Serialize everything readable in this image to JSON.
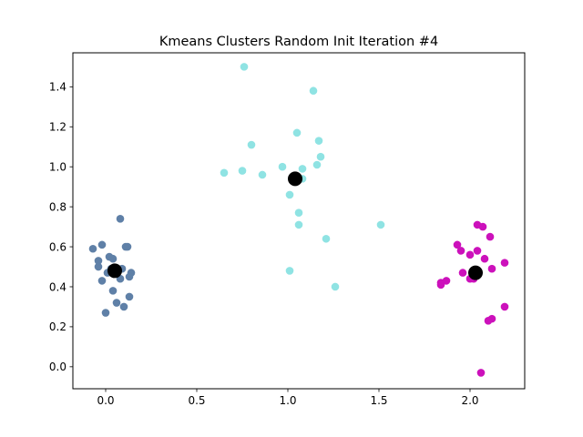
{
  "chart_data": {
    "type": "scatter",
    "title": "Kmeans Clusters Random Init Iteration #4",
    "xlabel": "",
    "ylabel": "",
    "xlim": [
      -0.18,
      2.3
    ],
    "ylim": [
      -0.11,
      1.57
    ],
    "xticks": [
      0.0,
      0.5,
      1.0,
      1.5,
      2.0
    ],
    "xtick_labels": [
      "0.0",
      "0.5",
      "1.0",
      "1.5",
      "2.0"
    ],
    "yticks": [
      0.0,
      0.2,
      0.4,
      0.6,
      0.8,
      1.0,
      1.2,
      1.4
    ],
    "ytick_labels": [
      "0.0",
      "0.2",
      "0.4",
      "0.6",
      "0.8",
      "1.0",
      "1.2",
      "1.4"
    ],
    "grid": false,
    "series": [
      {
        "color": "#5f80a7",
        "points": [
          [
            0.08,
            0.74
          ],
          [
            -0.07,
            0.59
          ],
          [
            -0.02,
            0.61
          ],
          [
            0.11,
            0.6
          ],
          [
            0.12,
            0.6
          ],
          [
            -0.04,
            0.53
          ],
          [
            0.02,
            0.55
          ],
          [
            0.04,
            0.54
          ],
          [
            -0.04,
            0.5
          ],
          [
            0.01,
            0.47
          ],
          [
            0.03,
            0.49
          ],
          [
            0.09,
            0.49
          ],
          [
            0.14,
            0.47
          ],
          [
            0.13,
            0.45
          ],
          [
            -0.02,
            0.43
          ],
          [
            0.08,
            0.44
          ],
          [
            0.04,
            0.38
          ],
          [
            0.13,
            0.35
          ],
          [
            0.06,
            0.32
          ],
          [
            0.1,
            0.3
          ],
          [
            0.0,
            0.27
          ]
        ]
      },
      {
        "color": "#8fe3e3",
        "points": [
          [
            0.76,
            1.5
          ],
          [
            1.14,
            1.38
          ],
          [
            1.05,
            1.17
          ],
          [
            1.17,
            1.13
          ],
          [
            0.8,
            1.11
          ],
          [
            1.18,
            1.05
          ],
          [
            1.16,
            1.01
          ],
          [
            0.97,
            1.0
          ],
          [
            1.08,
            0.99
          ],
          [
            0.65,
            0.97
          ],
          [
            0.75,
            0.98
          ],
          [
            0.86,
            0.96
          ],
          [
            1.08,
            0.94
          ],
          [
            1.01,
            0.86
          ],
          [
            1.06,
            0.77
          ],
          [
            1.06,
            0.71
          ],
          [
            1.51,
            0.71
          ],
          [
            1.21,
            0.64
          ],
          [
            1.01,
            0.48
          ],
          [
            1.26,
            0.4
          ]
        ]
      },
      {
        "color": "#cc11bb",
        "points": [
          [
            2.04,
            0.71
          ],
          [
            2.07,
            0.7
          ],
          [
            2.11,
            0.65
          ],
          [
            1.93,
            0.61
          ],
          [
            1.95,
            0.58
          ],
          [
            2.04,
            0.58
          ],
          [
            2.0,
            0.56
          ],
          [
            2.08,
            0.54
          ],
          [
            2.19,
            0.52
          ],
          [
            1.96,
            0.47
          ],
          [
            2.12,
            0.49
          ],
          [
            2.0,
            0.44
          ],
          [
            2.02,
            0.44
          ],
          [
            1.87,
            0.43
          ],
          [
            1.84,
            0.42
          ],
          [
            1.84,
            0.41
          ],
          [
            2.19,
            0.3
          ],
          [
            2.12,
            0.24
          ],
          [
            2.1,
            0.23
          ],
          [
            2.06,
            -0.03
          ]
        ]
      }
    ],
    "centroids": {
      "color": "#000000",
      "points": [
        [
          0.05,
          0.48
        ],
        [
          1.04,
          0.94
        ],
        [
          2.03,
          0.47
        ]
      ]
    }
  }
}
